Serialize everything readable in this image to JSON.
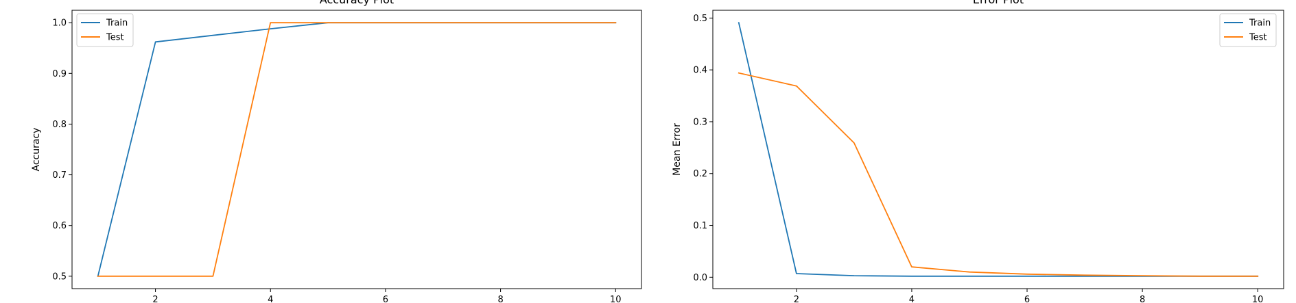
{
  "chart_data": [
    {
      "type": "line",
      "title": "Accuracy Plot",
      "xlabel": "",
      "ylabel": "Accuracy",
      "x": [
        1,
        2,
        3,
        4,
        5,
        6,
        7,
        8,
        9,
        10
      ],
      "xticks": [
        2,
        4,
        6,
        8,
        10
      ],
      "yticks": [
        0.5,
        0.6,
        0.7,
        0.8,
        0.9,
        1.0
      ],
      "ytick_labels": [
        "0.5",
        "0.6",
        "0.7",
        "0.8",
        "0.9",
        "1.0"
      ],
      "xlim": [
        0.55,
        10.45
      ],
      "ylim": [
        0.4755,
        1.0245
      ],
      "grid": false,
      "legend_placement": "top-left",
      "series": [
        {
          "name": "Train",
          "color": "#1f77b4",
          "values": [
            0.5,
            0.962,
            0.975,
            0.988,
            1.0,
            1.0,
            1.0,
            1.0,
            1.0,
            1.0
          ]
        },
        {
          "name": "Test",
          "color": "#ff7f0e",
          "values": [
            0.5,
            0.5,
            0.5,
            1.0,
            1.0,
            1.0,
            1.0,
            1.0,
            1.0,
            1.0
          ]
        }
      ]
    },
    {
      "type": "line",
      "title": "Error Plot",
      "xlabel": "",
      "ylabel": "Mean Error",
      "x": [
        1,
        2,
        3,
        4,
        5,
        6,
        7,
        8,
        9,
        10
      ],
      "xticks": [
        2,
        4,
        6,
        8,
        10
      ],
      "yticks": [
        0.0,
        0.1,
        0.2,
        0.3,
        0.4,
        0.5
      ],
      "ytick_labels": [
        "0.0",
        "0.1",
        "0.2",
        "0.3",
        "0.4",
        "0.5"
      ],
      "xlim": [
        0.55,
        10.45
      ],
      "ylim": [
        -0.022,
        0.515
      ],
      "grid": false,
      "legend_placement": "top-right",
      "series": [
        {
          "name": "Train",
          "color": "#1f77b4",
          "values": [
            0.491,
            0.007,
            0.003,
            0.002,
            0.002,
            0.002,
            0.002,
            0.002,
            0.002,
            0.002
          ]
        },
        {
          "name": "Test",
          "color": "#ff7f0e",
          "values": [
            0.394,
            0.369,
            0.259,
            0.02,
            0.01,
            0.006,
            0.004,
            0.003,
            0.002,
            0.002
          ]
        }
      ]
    }
  ]
}
